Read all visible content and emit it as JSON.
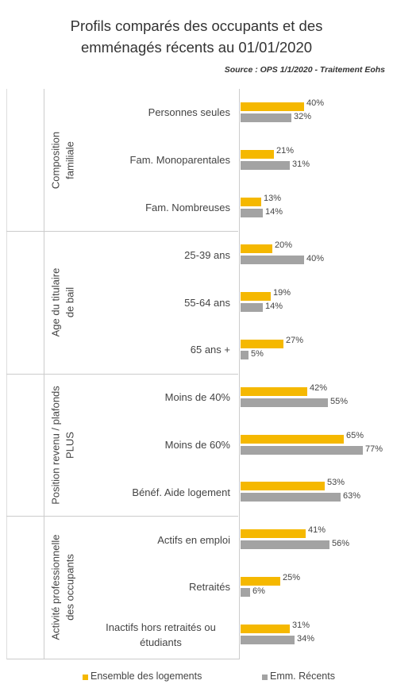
{
  "chart_data": {
    "type": "bar",
    "orientation": "horizontal",
    "title": [
      "Profils comparés des occupants et des",
      "emménagés récents au 01/01/2020"
    ],
    "subtitle": "Source : OPS 1/1/2020 - Traitement Eohs",
    "groups": [
      {
        "label": [
          "Composition",
          "familiale"
        ],
        "categories": [
          "Personnes seules",
          "Fam. Monoparentales",
          "Fam. Nombreuses"
        ]
      },
      {
        "label": [
          "Age du titulaire",
          "de bail"
        ],
        "categories": [
          "25-39 ans",
          "55-64 ans",
          "65 ans +"
        ]
      },
      {
        "label": [
          "Position revenu / plafonds",
          "PLUS"
        ],
        "categories": [
          "Moins de 40%",
          "Moins de 60%",
          "Bénéf. Aide logement"
        ]
      },
      {
        "label": [
          "Activité professionnelle",
          "des occupants"
        ],
        "categories": [
          "Actifs en emploi",
          "Retraités",
          "Inactifs hors retraités ou étudiants"
        ]
      }
    ],
    "series": [
      {
        "name": "Ensemble des logements",
        "color": "#f5b800",
        "values": [
          40,
          21,
          13,
          20,
          19,
          27,
          42,
          65,
          53,
          41,
          25,
          31
        ],
        "value_labels": [
          "40%",
          "21%",
          "13%",
          "20%",
          "19%",
          "27%",
          "42%",
          "65%",
          "53%",
          "41%",
          "25%",
          "31%"
        ]
      },
      {
        "name": "Emm. Récents",
        "color": "#a3a3a3",
        "values": [
          32,
          31,
          14,
          40,
          14,
          5,
          55,
          77,
          63,
          56,
          6,
          34
        ],
        "value_labels": [
          "32%",
          "31%",
          "14%",
          "40%",
          "14%",
          "5%",
          "55%",
          "77%",
          "63%",
          "56%",
          "6%",
          "34%"
        ]
      }
    ]
  }
}
